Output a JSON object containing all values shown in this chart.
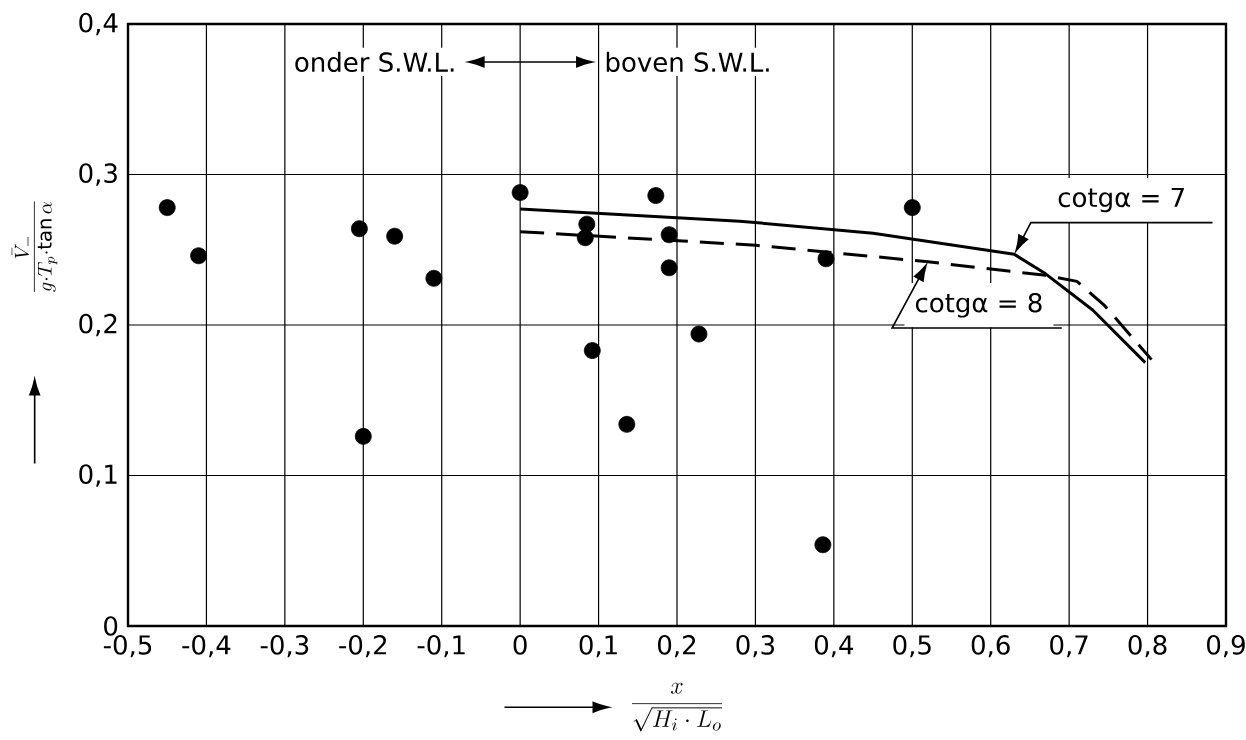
{
  "chart_data": {
    "type": "scatter",
    "xlabel": "\\frac{x}{\\sqrt{H_{i}\\cdot L_{o}}}",
    "ylabel": "\\frac{\\bar{V}_{-}}{g\\cdot T_{p}\\cdot\\tan\\alpha}",
    "annotations": [
      "onder S.W.L.",
      "boven S.W.L."
    ],
    "xlim": [
      -0.5,
      0.9
    ],
    "ylim": [
      0,
      0.4
    ],
    "xticks": [
      {
        "value": -0.5,
        "label": "-0,5"
      },
      {
        "value": -0.4,
        "label": "-0,4"
      },
      {
        "value": -0.3,
        "label": "-0,3"
      },
      {
        "value": -0.2,
        "label": "-0,2"
      },
      {
        "value": -0.1,
        "label": "-0,1"
      },
      0,
      {
        "value": 0.1,
        "label": "0,1"
      },
      {
        "value": 0.2,
        "label": "0,2"
      },
      {
        "value": 0.3,
        "label": "0,3"
      },
      {
        "value": 0.4,
        "label": "0,4"
      },
      {
        "value": 0.5,
        "label": "0,5"
      },
      {
        "value": 0.6,
        "label": "0,6"
      },
      {
        "value": 0.7,
        "label": "0,7"
      },
      {
        "value": 0.8,
        "label": "0,8"
      },
      {
        "value": 0.9,
        "label": "0,9"
      }
    ],
    "yticks": [
      0,
      {
        "value": 0.1,
        "label": "0,1"
      },
      {
        "value": 0.2,
        "label": "0,2"
      },
      {
        "value": 0.3,
        "label": "0,3"
      },
      {
        "value": 0.4,
        "label": "0,4"
      }
    ],
    "grid": true,
    "series": [
      {
        "color": "#000000",
        "marker": "circle",
        "x": [
          -0.45,
          -0.41,
          -0.205,
          -0.2,
          -0.16,
          -0.11,
          0.0,
          0.085,
          0.083,
          0.092,
          0.136,
          0.173,
          0.19,
          0.19,
          0.228,
          0.386,
          0.39,
          0.5
        ],
        "values": [
          0.278,
          0.246,
          0.264,
          0.126,
          0.259,
          0.231,
          0.288,
          0.267,
          0.258,
          0.183,
          0.134,
          0.286,
          0.26,
          0.238,
          0.194,
          0.054,
          0.244,
          0.278
        ]
      },
      {
        "type": "line",
        "name": "cotgα = 7",
        "color": "#000000",
        "marker": "none",
        "line_style": "solid",
        "x": [
          0,
          0.28,
          0.45,
          0.63,
          0.67,
          0.73,
          0.797
        ],
        "values": [
          0.277,
          0.269,
          0.261,
          0.247,
          0.234,
          0.21,
          0.175
        ]
      },
      {
        "type": "line",
        "name": "cotgα = 8",
        "color": "#000000",
        "marker": "none",
        "line_style": "dashed",
        "x": [
          0,
          0.3,
          0.52,
          0.67,
          0.71,
          0.745,
          0.805
        ],
        "values": [
          0.262,
          0.253,
          0.242,
          0.233,
          0.229,
          0.213,
          0.177
        ]
      }
    ]
  }
}
